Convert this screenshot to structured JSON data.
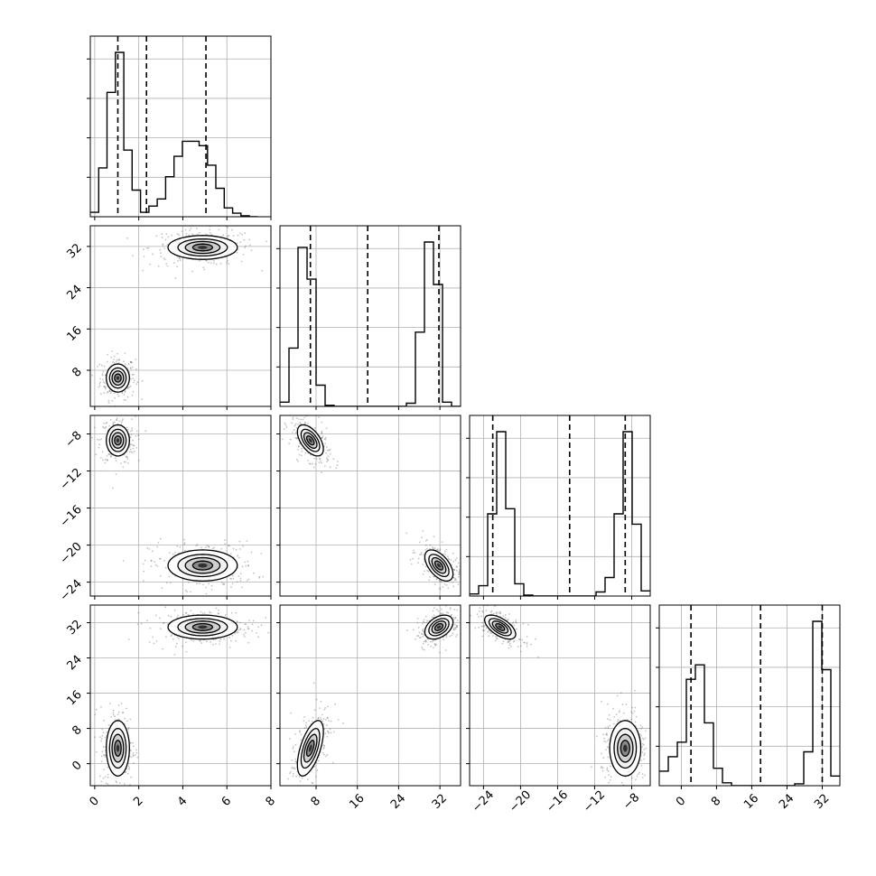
{
  "chart_data": {
    "type": "corner",
    "grid": true,
    "parameters": 4,
    "axes": [
      {
        "index": 0,
        "range": [
          -0.2,
          8.0
        ],
        "ticks": [
          0,
          2,
          4,
          6,
          8
        ],
        "tick_labels": [
          "0",
          "2",
          "4",
          "6",
          "8"
        ]
      },
      {
        "index": 1,
        "range": [
          1.0,
          36.0
        ],
        "ticks": [
          8,
          16,
          24,
          32
        ],
        "tick_labels": [
          "8",
          "16",
          "24",
          "32"
        ]
      },
      {
        "index": 2,
        "range": [
          -25.5,
          -6.0
        ],
        "ticks": [
          -24,
          -20,
          -16,
          -12,
          -8
        ],
        "tick_labels": [
          "−24",
          "−20",
          "−16",
          "−12",
          "−8"
        ]
      },
      {
        "index": 3,
        "range": [
          -5.0,
          36.0
        ],
        "ticks": [
          0,
          8,
          16,
          24,
          32
        ],
        "tick_labels": [
          "0",
          "8",
          "16",
          "24",
          "32"
        ]
      }
    ],
    "marginals": [
      {
        "param": 0,
        "bin_edges": [
          -0.2,
          0.18,
          0.56,
          0.94,
          1.32,
          1.7,
          2.08,
          2.46,
          2.84,
          3.22,
          3.6,
          3.98,
          4.36,
          4.74,
          5.12,
          5.5,
          5.88,
          6.26,
          6.64,
          7.02,
          7.4
        ],
        "counts": [
          5,
          55,
          140,
          185,
          75,
          30,
          5,
          12,
          20,
          45,
          68,
          85,
          85,
          80,
          58,
          32,
          10,
          4,
          1,
          0
        ],
        "quantiles": [
          1.05,
          2.35,
          5.05
        ]
      },
      {
        "param": 1,
        "bin_edges": [
          1.0,
          2.75,
          4.5,
          6.25,
          8.0,
          9.75,
          11.5,
          13.25,
          15.0,
          16.75,
          18.5,
          20.25,
          22.0,
          23.75,
          25.5,
          27.25,
          29.0,
          30.75,
          32.5,
          34.25,
          36.0
        ],
        "counts": [
          4,
          55,
          150,
          120,
          20,
          1,
          0,
          0,
          0,
          0,
          0,
          0,
          0,
          0,
          3,
          70,
          155,
          115,
          4,
          0
        ],
        "quantiles": [
          6.9,
          18.0,
          31.8
        ]
      },
      {
        "param": 2,
        "bin_edges": [
          -25.5,
          -24.525,
          -23.55,
          -22.575,
          -21.6,
          -20.625,
          -19.65,
          -18.675,
          -17.7,
          -16.725,
          -15.75,
          -14.775,
          -13.8,
          -12.825,
          -11.85,
          -10.875,
          -9.9,
          -8.925,
          -7.95,
          -6.975,
          -6.0
        ],
        "counts": [
          2,
          10,
          80,
          160,
          85,
          12,
          1,
          0,
          0,
          0,
          0,
          0,
          0,
          0,
          4,
          18,
          80,
          160,
          70,
          5
        ],
        "quantiles": [
          -23.0,
          -14.7,
          -8.7
        ]
      },
      {
        "param": 3,
        "bin_edges": [
          -5.0,
          -2.95,
          -0.9,
          1.15,
          3.2,
          5.25,
          7.3,
          9.35,
          11.4,
          13.45,
          15.5,
          17.55,
          19.6,
          21.65,
          23.7,
          25.75,
          27.8,
          29.85,
          31.9,
          33.95,
          36.0
        ],
        "counts": [
          15,
          30,
          45,
          110,
          125,
          65,
          18,
          3,
          0,
          0,
          0,
          0,
          0,
          0,
          0,
          2,
          35,
          170,
          120,
          10
        ],
        "quantiles": [
          2.2,
          18.0,
          32.0
        ]
      }
    ],
    "joint_modes": [
      {
        "x_param": 0,
        "y_param": 1,
        "modes": [
          {
            "x": 1.05,
            "y": 6.5,
            "sx": 0.25,
            "sy": 1.3,
            "rho": 0.0
          },
          {
            "x": 4.9,
            "y": 31.8,
            "sx": 0.75,
            "sy": 1.1,
            "rho": 0.0
          }
        ]
      },
      {
        "x_param": 0,
        "y_param": 2,
        "modes": [
          {
            "x": 1.05,
            "y": -8.7,
            "sx": 0.25,
            "sy": 0.8,
            "rho": 0.0
          },
          {
            "x": 4.9,
            "y": -22.2,
            "sx": 0.75,
            "sy": 0.8,
            "rho": 0.0
          }
        ]
      },
      {
        "x_param": 1,
        "y_param": 2,
        "modes": [
          {
            "x": 6.9,
            "y": -8.7,
            "sx": 1.2,
            "sy": 0.8,
            "rho": -0.55
          },
          {
            "x": 31.8,
            "y": -22.2,
            "sx": 1.3,
            "sy": 0.8,
            "rho": -0.55
          }
        ]
      },
      {
        "x_param": 0,
        "y_param": 3,
        "modes": [
          {
            "x": 1.05,
            "y": 3.5,
            "sx": 0.25,
            "sy": 3.0,
            "rho": 0.0
          },
          {
            "x": 4.9,
            "y": 31.0,
            "sx": 0.75,
            "sy": 1.3,
            "rho": 0.0
          }
        ]
      },
      {
        "x_param": 1,
        "y_param": 3,
        "modes": [
          {
            "x": 6.9,
            "y": 3.5,
            "sx": 1.2,
            "sy": 3.0,
            "rho": 0.6
          },
          {
            "x": 31.8,
            "y": 31.0,
            "sx": 1.3,
            "sy": 1.3,
            "rho": 0.4
          }
        ]
      },
      {
        "x_param": 2,
        "y_param": 3,
        "modes": [
          {
            "x": -8.7,
            "y": 3.5,
            "sx": 0.8,
            "sy": 3.0,
            "rho": 0.0
          },
          {
            "x": -22.2,
            "y": 31.0,
            "sx": 0.8,
            "sy": 1.3,
            "rho": -0.6
          }
        ]
      }
    ]
  }
}
